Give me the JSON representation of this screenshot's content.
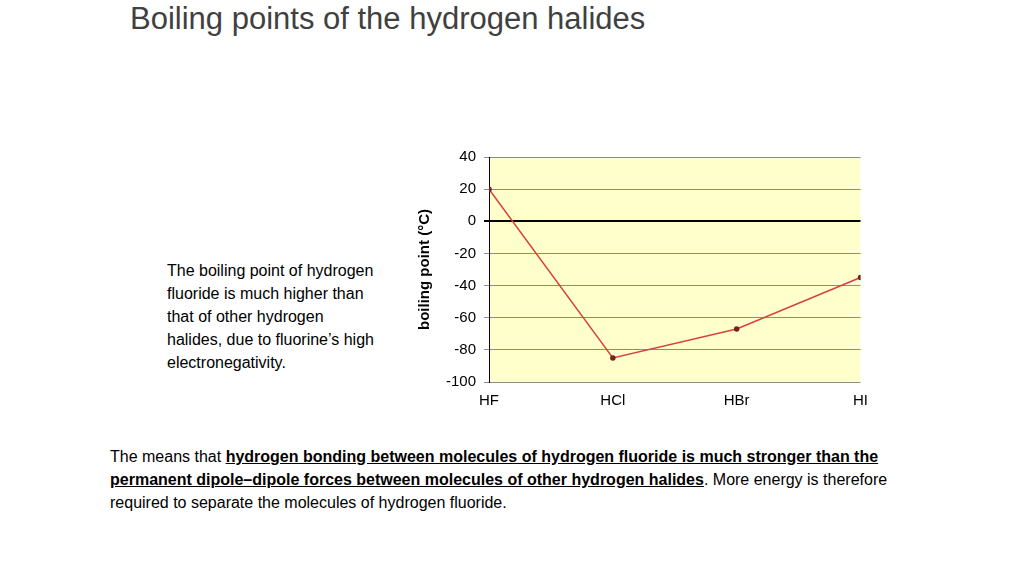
{
  "heading": "Boiling points of the hydrogen halides",
  "side_note": "The boiling point of hydrogen fluoride is much higher than that of other hydrogen halides, due to fluorine’s high electronegativity.",
  "footer": {
    "before": "The means that ",
    "emphasis": "hydrogen bonding between molecules of hydrogen fluoride is much stronger than the permanent dipole–dipole forces between molecules of other hydrogen halides",
    "after": ". More energy is therefore required to separate the molecules of hydrogen fluoride."
  },
  "chart_data": {
    "type": "line",
    "y_label": "boiling point (°C)",
    "categories": [
      "HF",
      "HCl",
      "HBr",
      "HI"
    ],
    "values": [
      20,
      -85,
      -67,
      -35
    ],
    "color": "#d9413e",
    "marker": "circle",
    "ylim": [
      -100,
      40
    ],
    "yticks": [
      -100,
      -80,
      -60,
      -40,
      -20,
      0,
      20,
      40
    ],
    "grid": true
  }
}
